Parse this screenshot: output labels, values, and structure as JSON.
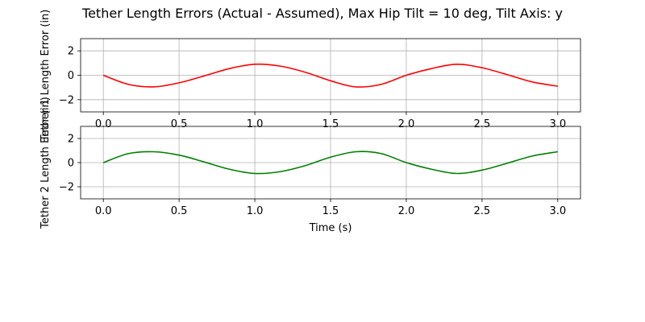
{
  "title": "Tether Length Errors (Actual - Assumed), Max Hip Tilt = 10 deg, Tilt Axis: y",
  "chart_data": [
    {
      "type": "line",
      "title": "",
      "xlabel": "",
      "ylabel": "Tether 1 Length Error (in)",
      "xlim": [
        -0.15,
        3.15
      ],
      "ylim": [
        -3,
        3
      ],
      "xticks": [
        0.0,
        0.5,
        1.0,
        1.5,
        2.0,
        2.5,
        3.0
      ],
      "xtick_labels": [
        "0.0",
        "0.5",
        "1.0",
        "1.5",
        "2.0",
        "2.5",
        "3.0"
      ],
      "yticks": [
        -2,
        0,
        2
      ],
      "ytick_labels": [
        "−2",
        "0",
        "2"
      ],
      "grid": true,
      "series": [
        {
          "color": "#ff0000",
          "x": [
            0.0,
            0.167,
            0.333,
            0.5,
            0.667,
            0.833,
            1.0,
            1.167,
            1.333,
            1.5,
            1.667,
            1.833,
            2.0,
            2.167,
            2.333,
            2.5,
            2.667,
            2.833,
            3.0
          ],
          "y": [
            0.0,
            -0.75,
            -0.95,
            -0.62,
            -0.05,
            0.55,
            0.9,
            0.75,
            0.25,
            -0.45,
            -0.95,
            -0.75,
            0.0,
            0.55,
            0.9,
            0.62,
            0.05,
            -0.55,
            -0.9
          ]
        }
      ]
    },
    {
      "type": "line",
      "title": "",
      "xlabel": "Time (s)",
      "ylabel": "Tether 2 Length Error (in)",
      "xlim": [
        -0.15,
        3.15
      ],
      "ylim": [
        -3,
        3
      ],
      "xticks": [
        0.0,
        0.5,
        1.0,
        1.5,
        2.0,
        2.5,
        3.0
      ],
      "xtick_labels": [
        "0.0",
        "0.5",
        "1.0",
        "1.5",
        "2.0",
        "2.5",
        "3.0"
      ],
      "yticks": [
        -2,
        0,
        2
      ],
      "ytick_labels": [
        "−2",
        "0",
        "2"
      ],
      "grid": true,
      "series": [
        {
          "color": "#008000",
          "x": [
            0.0,
            0.167,
            0.333,
            0.5,
            0.667,
            0.833,
            1.0,
            1.167,
            1.333,
            1.5,
            1.667,
            1.833,
            2.0,
            2.167,
            2.333,
            2.5,
            2.667,
            2.833,
            3.0
          ],
          "y": [
            0.0,
            0.75,
            0.9,
            0.62,
            0.05,
            -0.55,
            -0.9,
            -0.75,
            -0.25,
            0.45,
            0.9,
            0.75,
            0.0,
            -0.55,
            -0.9,
            -0.62,
            -0.05,
            0.55,
            0.9
          ]
        }
      ]
    }
  ]
}
